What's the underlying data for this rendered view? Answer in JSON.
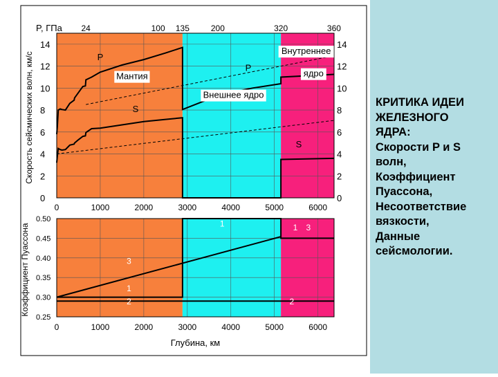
{
  "sidebar": {
    "lines": [
      "КРИТИКА ИДЕИ",
      "ЖЕЛЕЗНОГО",
      "ЯДРА:",
      "Скорости P и S",
      "волн,",
      "Коэффициент",
      "Пуассона,",
      "Несоответствие",
      "вязкости,",
      "Данные",
      "сейсмологии."
    ]
  },
  "colors": {
    "mantle": "#f7803c",
    "outer_core": "#1ef0f0",
    "inner_core": "#f7207c",
    "sidebar": "#b3dde3"
  },
  "chart_data": [
    {
      "type": "line",
      "title": "",
      "ylabel": "Скорость сейсмических волн, км/с",
      "x_top_label": "P, ГПа",
      "x_top_ticks": [
        {
          "label": "24",
          "depth": 670
        },
        {
          "label": "100",
          "depth": 2330
        },
        {
          "label": "135",
          "depth": 2890
        },
        {
          "label": "200",
          "depth": 3700
        },
        {
          "label": "320",
          "depth": 5150
        },
        {
          "label": "360",
          "depth": 6370
        }
      ],
      "xlim": [
        0,
        6371
      ],
      "ylim": [
        0,
        15
      ],
      "x_ticks": [
        0,
        1000,
        2000,
        3000,
        4000,
        5000,
        6000
      ],
      "y_ticks": [
        0,
        2,
        4,
        6,
        8,
        10,
        12,
        14
      ],
      "grid": true,
      "regions": [
        {
          "name": "mantle",
          "label": "Мантия",
          "from": 0,
          "to": 2890
        },
        {
          "name": "outer_core",
          "label": "Внешнее ядро",
          "from": 2890,
          "to": 5150
        },
        {
          "name": "inner_core",
          "label": "Внутреннее ядро",
          "from": 5150,
          "to": 6371
        }
      ],
      "series": [
        {
          "name": "P",
          "style": "solid",
          "x": [
            0,
            15,
            35,
            80,
            120,
            200,
            300,
            400,
            410,
            500,
            600,
            660,
            670,
            800,
            1000,
            1500,
            2000,
            2500,
            2890,
            2890,
            3500,
            4000,
            4500,
            5150,
            5150,
            6371
          ],
          "y": [
            5.8,
            6.5,
            8.0,
            8.1,
            8.05,
            8.0,
            8.6,
            8.9,
            9.1,
            9.6,
            10.15,
            10.2,
            10.75,
            11.0,
            11.45,
            12.1,
            12.6,
            13.2,
            13.7,
            8.05,
            9.0,
            9.6,
            10.0,
            10.4,
            11.0,
            11.25
          ]
        },
        {
          "name": "S",
          "style": "solid",
          "x": [
            0,
            15,
            35,
            80,
            120,
            200,
            300,
            400,
            410,
            500,
            600,
            660,
            670,
            800,
            1000,
            1500,
            2000,
            2500,
            2890,
            2890,
            5150,
            5150,
            6371
          ],
          "y": [
            3.2,
            3.8,
            4.5,
            4.4,
            4.35,
            4.4,
            4.8,
            4.9,
            5.0,
            5.3,
            5.6,
            5.65,
            5.95,
            6.3,
            6.35,
            6.65,
            6.95,
            7.15,
            7.3,
            0,
            0,
            3.5,
            3.6
          ]
        },
        {
          "name": "P",
          "style": "dashed",
          "x": [
            670,
            6371
          ],
          "y": [
            8.5,
            12.95
          ]
        },
        {
          "name": "S",
          "style": "dashed",
          "x": [
            0,
            6371
          ],
          "y": [
            4.0,
            7.05
          ]
        }
      ],
      "annotations": [
        {
          "text": "P",
          "x": 1000,
          "y": 12.55
        },
        {
          "text": "P",
          "x": 4400,
          "y": 11.55
        },
        {
          "text": "S",
          "x": 1810,
          "y": 7.8
        },
        {
          "text": "S",
          "x": 5560,
          "y": 4.6
        },
        {
          "text": "Мантия",
          "x": 1730,
          "y": 10.8
        },
        {
          "text": "Внешнее ядро",
          "x": 4060,
          "y": 9.1
        },
        {
          "text": "Внутреннее",
          "x": 5730,
          "y": 13.1
        },
        {
          "text": "ядро",
          "x": 5900,
          "y": 11.05
        }
      ]
    },
    {
      "type": "line",
      "title": "",
      "ylabel": "Коэффициент Пуассона",
      "xlabel": "Глубина, км",
      "xlim": [
        0,
        6371
      ],
      "ylim": [
        0.25,
        0.5
      ],
      "x_ticks": [
        0,
        1000,
        2000,
        3000,
        4000,
        5000,
        6000
      ],
      "y_ticks": [
        0.25,
        0.3,
        0.35,
        0.4,
        0.45,
        0.5
      ],
      "y_tick_labels": [
        "0.25",
        "0.30",
        "0.35",
        "0.40",
        "0.45",
        "0.50"
      ],
      "grid": true,
      "series": [
        {
          "name": "1",
          "x": [
            0,
            2890,
            2890,
            5150,
            5150,
            6371
          ],
          "y": [
            0.3,
            0.3,
            0.5,
            0.5,
            0.45,
            0.45
          ]
        },
        {
          "name": "2",
          "x": [
            0,
            6371
          ],
          "y": [
            0.29,
            0.29
          ]
        },
        {
          "name": "3",
          "x": [
            0,
            5150
          ],
          "y": [
            0.3,
            0.454
          ]
        }
      ],
      "annotations": [
        {
          "text": "1",
          "x": 3800,
          "y": 0.48
        },
        {
          "text": "1",
          "x": 5480,
          "y": 0.47
        },
        {
          "text": "3",
          "x": 5780,
          "y": 0.47
        },
        {
          "text": "3",
          "x": 1660,
          "y": 0.385
        },
        {
          "text": "1",
          "x": 1660,
          "y": 0.315
        },
        {
          "text": "2",
          "x": 1660,
          "y": 0.282
        },
        {
          "text": "2",
          "x": 5400,
          "y": 0.282
        }
      ]
    }
  ]
}
